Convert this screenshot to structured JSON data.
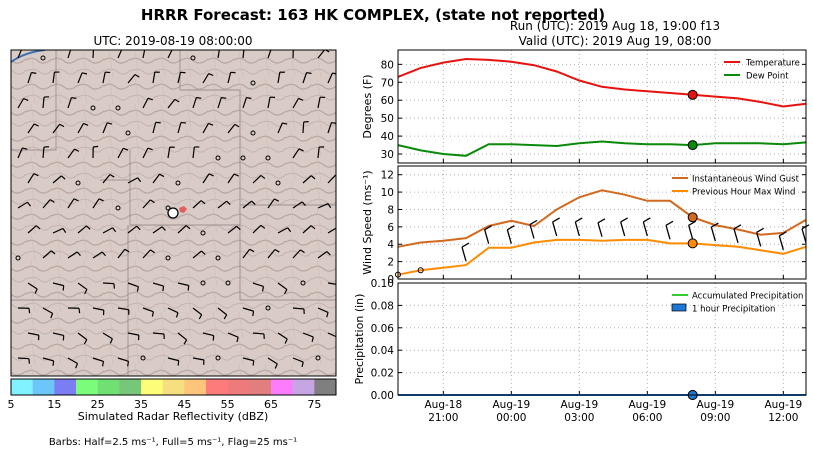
{
  "figure": {
    "title": "HRRR Forecast: 163 HK COMPLEX, (state not reported)",
    "run_line": "Run (UTC): 2019 Aug 18, 19:00 f13",
    "valid_line": "Valid (UTC): 2019 Aug 19, 08:00"
  },
  "map": {
    "title": "UTC: 2019-08-19 08:00:00",
    "colorbar_label": "Simulated Radar Reflectivity (dBZ)",
    "colorbar_ticks": [
      "5",
      "15",
      "25",
      "35",
      "45",
      "55",
      "65",
      "75"
    ],
    "colorbar_colors": [
      "#7ff3ff",
      "#6cc6f9",
      "#7b7df4",
      "#7bfd7b",
      "#6fe071",
      "#77c77b",
      "#fdfd79",
      "#f5df7f",
      "#fdc57b",
      "#fd7b7b",
      "#ee7a7b",
      "#e17e7e",
      "#fd7bfd",
      "#c6a5e4",
      "#7f7f7f"
    ],
    "barbs_note": "Barbs: Half=2.5 ms⁻¹, Full=5 ms⁻¹, Flag=25 ms⁻¹"
  },
  "chart_data": [
    {
      "type": "line",
      "x": [
        "Aug-18 19:00",
        "Aug-18 20:00",
        "Aug-18 21:00",
        "Aug-18 22:00",
        "Aug-18 23:00",
        "Aug-19 00:00",
        "Aug-19 01:00",
        "Aug-19 02:00",
        "Aug-19 03:00",
        "Aug-19 04:00",
        "Aug-19 05:00",
        "Aug-19 06:00",
        "Aug-19 07:00",
        "Aug-19 08:00",
        "Aug-19 09:00",
        "Aug-19 10:00",
        "Aug-19 11:00",
        "Aug-19 12:00",
        "Aug-19 13:00"
      ],
      "series": [
        {
          "name": "Temperature",
          "color": "#e8120f",
          "values": [
            73,
            78,
            81,
            83,
            82.5,
            81.5,
            79.5,
            76,
            71,
            67.5,
            66,
            65,
            64,
            63,
            62,
            61,
            59,
            56.5,
            58
          ]
        },
        {
          "name": "Dew Point",
          "color": "#0a8a0a",
          "values": [
            35,
            32,
            30,
            29,
            35.5,
            35.5,
            35,
            34.5,
            36,
            37,
            36,
            35.5,
            35.5,
            35,
            36,
            36,
            36,
            35.5,
            36.5
          ]
        }
      ],
      "ylabel": "Degrees (F)",
      "ylim": [
        25,
        88
      ],
      "yticks": [
        30,
        40,
        50,
        60,
        70,
        80
      ],
      "marker_x": "Aug-19 08:00",
      "legend": "top-right",
      "grid": true
    },
    {
      "type": "line",
      "x": [
        "Aug-18 19:00",
        "Aug-18 20:00",
        "Aug-18 21:00",
        "Aug-18 22:00",
        "Aug-18 23:00",
        "Aug-19 00:00",
        "Aug-19 01:00",
        "Aug-19 02:00",
        "Aug-19 03:00",
        "Aug-19 04:00",
        "Aug-19 05:00",
        "Aug-19 06:00",
        "Aug-19 07:00",
        "Aug-19 08:00",
        "Aug-19 09:00",
        "Aug-19 10:00",
        "Aug-19 11:00",
        "Aug-19 12:00",
        "Aug-19 13:00"
      ],
      "series": [
        {
          "name": "Instantaneous Wind Gust",
          "color": "#d2691e",
          "values": [
            3.7,
            4.2,
            4.4,
            4.7,
            6.1,
            6.7,
            6.1,
            8.0,
            9.4,
            10.2,
            9.7,
            9.0,
            9.0,
            7.1,
            6.2,
            5.7,
            5.1,
            5.3,
            6.8
          ]
        },
        {
          "name": "Previous Hour Max Wind",
          "color": "#ff8c00",
          "values": [
            0.5,
            1.0,
            1.3,
            1.6,
            3.6,
            3.6,
            4.2,
            4.5,
            4.5,
            4.4,
            4.5,
            4.5,
            4.1,
            4.1,
            3.9,
            3.7,
            3.3,
            2.9,
            3.7
          ]
        }
      ],
      "ylabel": "Wind Speed (ms⁻¹)",
      "ylim": [
        0,
        13
      ],
      "yticks": [
        0,
        2,
        4,
        6,
        8,
        10,
        12
      ],
      "marker_x": "Aug-19 08:00",
      "legend": "top-right",
      "grid": true
    },
    {
      "type": "line",
      "x": [
        "Aug-18 19:00",
        "Aug-18 20:00",
        "Aug-18 21:00",
        "Aug-18 22:00",
        "Aug-18 23:00",
        "Aug-19 00:00",
        "Aug-19 01:00",
        "Aug-19 02:00",
        "Aug-19 03:00",
        "Aug-19 04:00",
        "Aug-19 05:00",
        "Aug-19 06:00",
        "Aug-19 07:00",
        "Aug-19 08:00",
        "Aug-19 09:00",
        "Aug-19 10:00",
        "Aug-19 11:00",
        "Aug-19 12:00",
        "Aug-19 13:00"
      ],
      "series": [
        {
          "name": "Accumulated Precipitation",
          "color": "#33cc33",
          "values": [
            0,
            0,
            0,
            0,
            0,
            0,
            0,
            0,
            0,
            0,
            0,
            0,
            0,
            0,
            0,
            0,
            0,
            0,
            0
          ]
        },
        {
          "name": "1 hour Precipitation",
          "color": "#1f77d4",
          "values": [
            0,
            0,
            0,
            0,
            0,
            0,
            0,
            0,
            0,
            0,
            0,
            0,
            0,
            0,
            0,
            0,
            0,
            0,
            0
          ]
        }
      ],
      "ylabel": "Precipitation (in)",
      "ylim": [
        0,
        0.1
      ],
      "yticks": [
        "0.00",
        "0.02",
        "0.04",
        "0.06",
        "0.08",
        "0.10"
      ],
      "xticks": [
        {
          "x": "Aug-18 21:00",
          "l1": "Aug-18",
          "l2": "21:00"
        },
        {
          "x": "Aug-19 00:00",
          "l1": "Aug-19",
          "l2": "00:00"
        },
        {
          "x": "Aug-19 03:00",
          "l1": "Aug-19",
          "l2": "03:00"
        },
        {
          "x": "Aug-19 06:00",
          "l1": "Aug-19",
          "l2": "06:00"
        },
        {
          "x": "Aug-19 09:00",
          "l1": "Aug-19",
          "l2": "09:00"
        },
        {
          "x": "Aug-19 12:00",
          "l1": "Aug-19",
          "l2": "12:00"
        }
      ],
      "marker_x": "Aug-19 08:00",
      "legend": "top-right",
      "grid": true
    }
  ]
}
